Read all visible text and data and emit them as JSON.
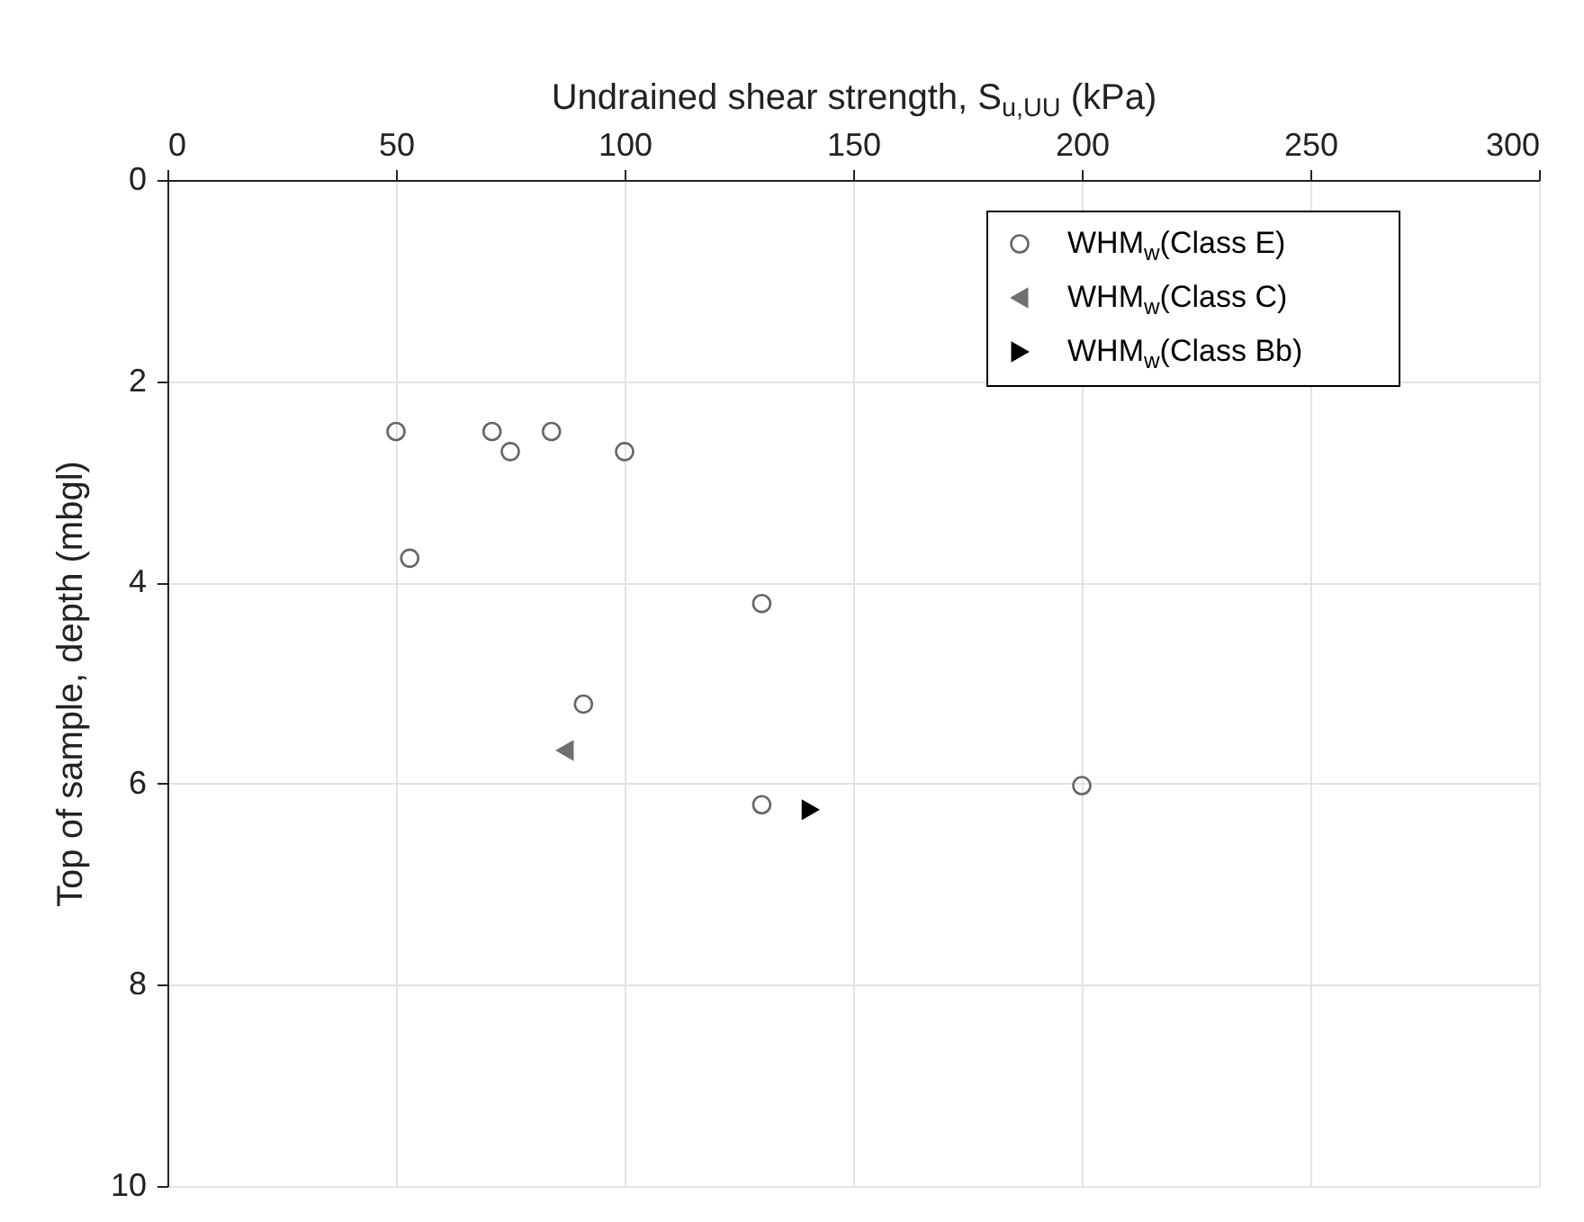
{
  "chart_data": {
    "type": "scatter",
    "xlabel": "Undrained shear strength, S$_{u,UU}$ (kPa)",
    "ylabel": "Top of sample, depth (mbgl)",
    "xlim": [
      0,
      300
    ],
    "xticks": [
      0,
      50,
      100,
      150,
      200,
      250,
      300
    ],
    "ylim": [
      10,
      0
    ],
    "yticks": [
      0,
      2,
      4,
      6,
      8,
      10
    ],
    "grid": true,
    "legend": "top right",
    "series": [
      {
        "name": "WHM$_{w}$(Class E)",
        "color": "#666666",
        "marker": "circle",
        "x": [
          50,
          71,
          75,
          84,
          100,
          53,
          130,
          91,
          130,
          200
        ],
        "values": [
          2.5,
          2.5,
          2.7,
          2.5,
          2.7,
          3.76,
          4.21,
          5.21,
          6.21,
          6.02
        ]
      },
      {
        "name": "WHM$_{w}$(Class C)",
        "color": "#707070",
        "marker": "triangle-left",
        "x": [
          87
        ],
        "values": [
          5.67
        ]
      },
      {
        "name": "WHM$_{w}$(Class Bb)",
        "color": "#000000",
        "marker": "triangle-right",
        "x": [
          140.6
        ],
        "values": [
          6.26
        ]
      }
    ]
  }
}
